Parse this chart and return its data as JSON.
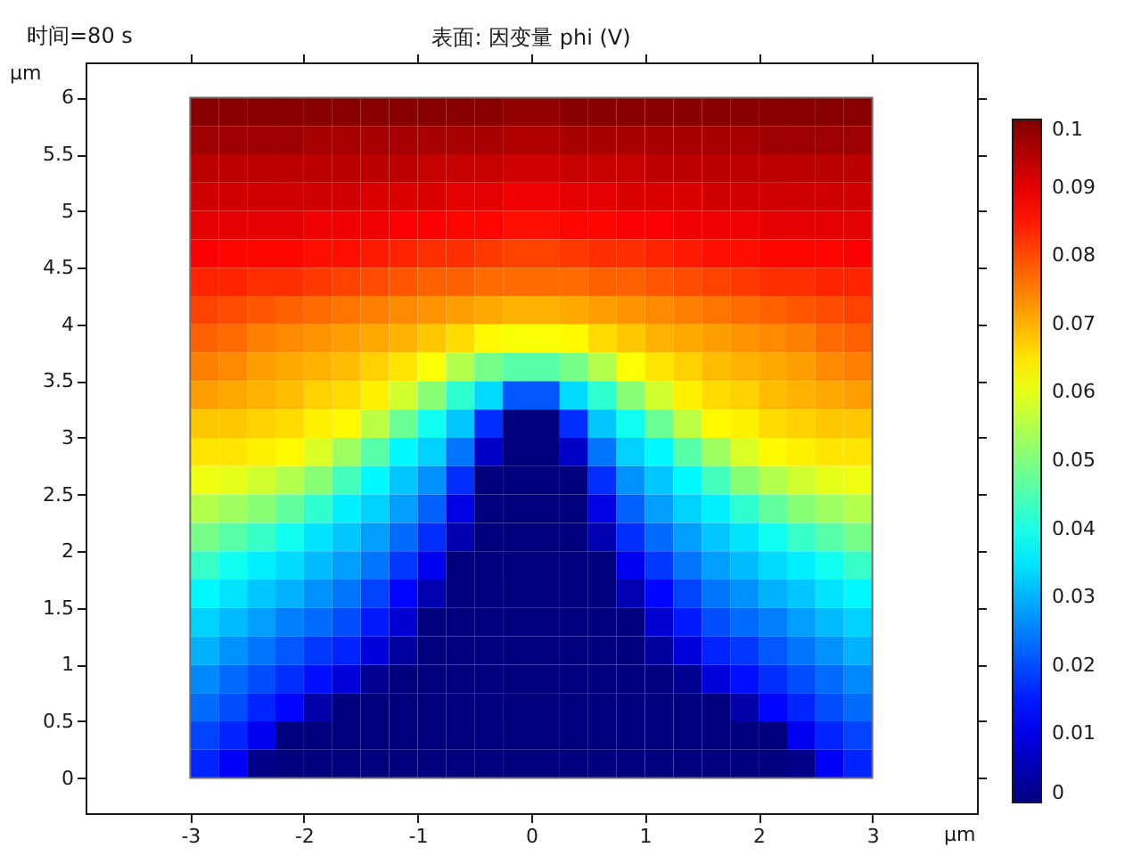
{
  "chart_data": {
    "type": "heatmap",
    "title": "表面: 因变量 phi (V)",
    "annotations": [
      "时间=80 s"
    ],
    "xlabel": "μm",
    "ylabel": "μm",
    "x": [
      -2.875,
      -2.625,
      -2.375,
      -2.125,
      -1.875,
      -1.625,
      -1.375,
      -1.125,
      -0.875,
      -0.625,
      -0.375,
      -0.125,
      0.125,
      0.375,
      0.625,
      0.875,
      1.125,
      1.375,
      1.625,
      1.875,
      2.125,
      2.375,
      2.625,
      2.875
    ],
    "y": [
      5.875,
      5.625,
      5.375,
      5.125,
      4.875,
      4.625,
      4.375,
      4.125,
      3.875,
      3.625,
      3.375,
      3.125,
      2.875,
      2.625,
      2.375,
      2.125,
      1.875,
      1.625,
      1.375,
      1.125,
      0.875,
      0.625,
      0.375,
      0.125
    ],
    "cells": [
      [
        0.099,
        0.099,
        0.099,
        0.099,
        0.099,
        0.099,
        0.099,
        0.099,
        0.099,
        0.099,
        0.099,
        0.098,
        0.098,
        0.099,
        0.099,
        0.099,
        0.099,
        0.099,
        0.099,
        0.099,
        0.099,
        0.099,
        0.099,
        0.099
      ],
      [
        0.097,
        0.097,
        0.097,
        0.097,
        0.096,
        0.096,
        0.096,
        0.096,
        0.096,
        0.096,
        0.096,
        0.095,
        0.095,
        0.096,
        0.096,
        0.096,
        0.096,
        0.096,
        0.096,
        0.096,
        0.097,
        0.097,
        0.097,
        0.097
      ],
      [
        0.094,
        0.094,
        0.094,
        0.094,
        0.094,
        0.094,
        0.094,
        0.094,
        0.093,
        0.093,
        0.093,
        0.092,
        0.092,
        0.093,
        0.093,
        0.093,
        0.094,
        0.094,
        0.094,
        0.094,
        0.094,
        0.094,
        0.094,
        0.094
      ],
      [
        0.092,
        0.092,
        0.092,
        0.092,
        0.092,
        0.092,
        0.091,
        0.091,
        0.091,
        0.09,
        0.09,
        0.089,
        0.089,
        0.09,
        0.09,
        0.091,
        0.091,
        0.091,
        0.092,
        0.092,
        0.092,
        0.092,
        0.092,
        0.092
      ],
      [
        0.09,
        0.09,
        0.09,
        0.09,
        0.089,
        0.089,
        0.089,
        0.088,
        0.088,
        0.087,
        0.087,
        0.086,
        0.086,
        0.087,
        0.087,
        0.088,
        0.088,
        0.089,
        0.089,
        0.089,
        0.09,
        0.09,
        0.09,
        0.09
      ],
      [
        0.088,
        0.087,
        0.087,
        0.087,
        0.086,
        0.086,
        0.085,
        0.084,
        0.083,
        0.083,
        0.082,
        0.081,
        0.081,
        0.082,
        0.083,
        0.083,
        0.084,
        0.085,
        0.086,
        0.086,
        0.087,
        0.087,
        0.087,
        0.088
      ],
      [
        0.084,
        0.084,
        0.083,
        0.083,
        0.082,
        0.081,
        0.08,
        0.079,
        0.078,
        0.078,
        0.077,
        0.077,
        0.077,
        0.077,
        0.078,
        0.078,
        0.079,
        0.08,
        0.081,
        0.082,
        0.083,
        0.083,
        0.084,
        0.084
      ],
      [
        0.081,
        0.08,
        0.079,
        0.078,
        0.077,
        0.076,
        0.075,
        0.074,
        0.073,
        0.072,
        0.071,
        0.07,
        0.07,
        0.071,
        0.072,
        0.073,
        0.074,
        0.075,
        0.076,
        0.077,
        0.078,
        0.079,
        0.08,
        0.081
      ],
      [
        0.078,
        0.077,
        0.075,
        0.074,
        0.073,
        0.072,
        0.071,
        0.07,
        0.068,
        0.066,
        0.063,
        0.062,
        0.062,
        0.063,
        0.066,
        0.068,
        0.07,
        0.071,
        0.072,
        0.073,
        0.074,
        0.075,
        0.077,
        0.078
      ],
      [
        0.075,
        0.074,
        0.072,
        0.071,
        0.07,
        0.069,
        0.067,
        0.065,
        0.062,
        0.055,
        0.049,
        0.046,
        0.046,
        0.049,
        0.055,
        0.062,
        0.065,
        0.067,
        0.069,
        0.07,
        0.071,
        0.072,
        0.074,
        0.075
      ],
      [
        0.072,
        0.071,
        0.07,
        0.069,
        0.067,
        0.066,
        0.064,
        0.058,
        0.051,
        0.042,
        0.034,
        0.021,
        0.021,
        0.034,
        0.042,
        0.051,
        0.058,
        0.064,
        0.066,
        0.067,
        0.069,
        0.07,
        0.071,
        0.072
      ],
      [
        0.068,
        0.068,
        0.067,
        0.066,
        0.064,
        0.063,
        0.056,
        0.048,
        0.039,
        0.032,
        0.017,
        0,
        0,
        0.017,
        0.032,
        0.039,
        0.048,
        0.056,
        0.063,
        0.064,
        0.066,
        0.067,
        0.068,
        0.068
      ],
      [
        0.065,
        0.065,
        0.064,
        0.063,
        0.059,
        0.053,
        0.046,
        0.037,
        0.033,
        0.024,
        0.007,
        0,
        0,
        0.007,
        0.024,
        0.033,
        0.037,
        0.046,
        0.053,
        0.059,
        0.063,
        0.064,
        0.065,
        0.065
      ],
      [
        0.061,
        0.06,
        0.058,
        0.055,
        0.051,
        0.044,
        0.037,
        0.032,
        0.027,
        0.017,
        0,
        0,
        0,
        0,
        0.017,
        0.027,
        0.032,
        0.037,
        0.044,
        0.051,
        0.055,
        0.058,
        0.06,
        0.061
      ],
      [
        0.055,
        0.053,
        0.051,
        0.047,
        0.042,
        0.036,
        0.033,
        0.028,
        0.022,
        0.01,
        0,
        0,
        0,
        0,
        0.01,
        0.022,
        0.028,
        0.033,
        0.036,
        0.042,
        0.047,
        0.051,
        0.053,
        0.055
      ],
      [
        0.049,
        0.046,
        0.043,
        0.039,
        0.035,
        0.032,
        0.028,
        0.023,
        0.017,
        0.005,
        0,
        0,
        0,
        0,
        0.005,
        0.017,
        0.023,
        0.028,
        0.032,
        0.035,
        0.039,
        0.043,
        0.046,
        0.049
      ],
      [
        0.043,
        0.039,
        0.036,
        0.034,
        0.031,
        0.028,
        0.024,
        0.018,
        0.011,
        0,
        0,
        0,
        0,
        0,
        0,
        0.011,
        0.018,
        0.024,
        0.028,
        0.031,
        0.034,
        0.036,
        0.039,
        0.043
      ],
      [
        0.037,
        0.035,
        0.032,
        0.03,
        0.027,
        0.024,
        0.019,
        0.013,
        0.005,
        0,
        0,
        0,
        0,
        0,
        0,
        0.005,
        0.013,
        0.019,
        0.024,
        0.027,
        0.03,
        0.032,
        0.035,
        0.037
      ],
      [
        0.033,
        0.031,
        0.028,
        0.025,
        0.023,
        0.02,
        0.015,
        0.008,
        0,
        0,
        0,
        0,
        0,
        0,
        0,
        0,
        0.008,
        0.015,
        0.02,
        0.023,
        0.025,
        0.028,
        0.031,
        0.033
      ],
      [
        0.03,
        0.027,
        0.024,
        0.021,
        0.018,
        0.016,
        0.009,
        0.003,
        0,
        0,
        0,
        0,
        0,
        0,
        0,
        0,
        0.003,
        0.009,
        0.016,
        0.018,
        0.021,
        0.024,
        0.027,
        0.03
      ],
      [
        0.026,
        0.023,
        0.02,
        0.017,
        0.014,
        0.009,
        0.002,
        0,
        0,
        0,
        0,
        0,
        0,
        0,
        0,
        0,
        0,
        0.002,
        0.009,
        0.014,
        0.017,
        0.02,
        0.023,
        0.026
      ],
      [
        0.023,
        0.02,
        0.016,
        0.013,
        0.004,
        0,
        0,
        0,
        0,
        0,
        0,
        0,
        0,
        0,
        0,
        0,
        0,
        0,
        0,
        0.004,
        0.013,
        0.016,
        0.02,
        0.023
      ],
      [
        0.019,
        0.016,
        0.011,
        0,
        0,
        0,
        0,
        0,
        0,
        0,
        0,
        0,
        0,
        0,
        0,
        0,
        0,
        0,
        0,
        0,
        0,
        0.011,
        0.016,
        0.019
      ],
      [
        0.016,
        0.012,
        0.001,
        0,
        0,
        0,
        0,
        0,
        0,
        0,
        0,
        0,
        0,
        0,
        0,
        0,
        0,
        0,
        0,
        0,
        0,
        0.001,
        0.012,
        0.016
      ]
    ],
    "clim": [
      0,
      0.1
    ],
    "cticks": [
      0,
      0.01,
      0.02,
      0.03,
      0.04,
      0.05,
      0.06,
      0.07,
      0.08,
      0.09,
      0.1
    ],
    "xlim": [
      -3.92,
      3.92
    ],
    "xticks": [
      -3,
      -2,
      -1,
      0,
      1,
      2,
      3
    ],
    "ylim": [
      -0.31,
      6.31
    ],
    "yticks": [
      0,
      0.5,
      1,
      1.5,
      2,
      2.5,
      3,
      3.5,
      4,
      4.5,
      5,
      5.5,
      6
    ]
  }
}
